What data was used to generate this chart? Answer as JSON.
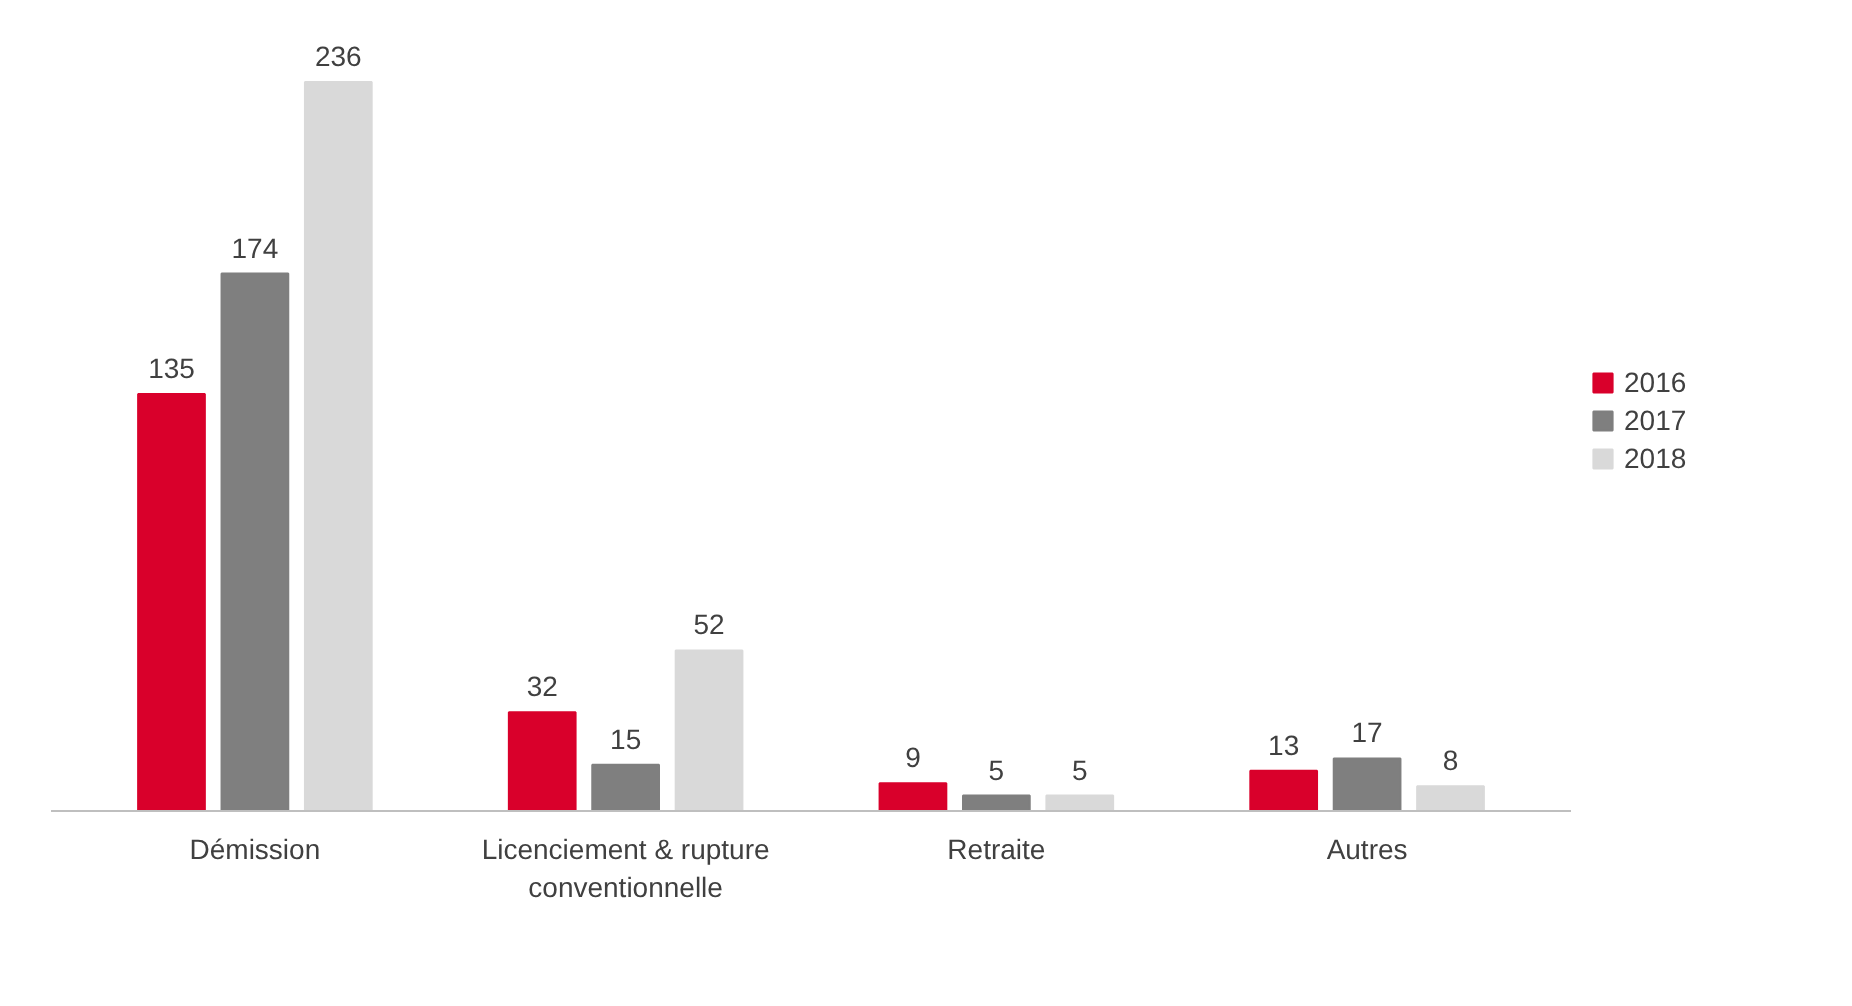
{
  "chart_data": {
    "type": "bar",
    "categories": [
      "Démission",
      "Licenciement & rupture conventionnelle",
      "Retraite",
      "Autres"
    ],
    "series": [
      {
        "name": "2016",
        "color": "#d9002b",
        "values": [
          135,
          32,
          9,
          13
        ]
      },
      {
        "name": "2017",
        "color": "#7f7f7f",
        "values": [
          174,
          15,
          5,
          17
        ]
      },
      {
        "name": "2018",
        "color": "#d9d9d9",
        "values": [
          236,
          52,
          5,
          8
        ]
      }
    ],
    "data_labels": true,
    "legend": "right",
    "grid": false,
    "relative": false
  }
}
